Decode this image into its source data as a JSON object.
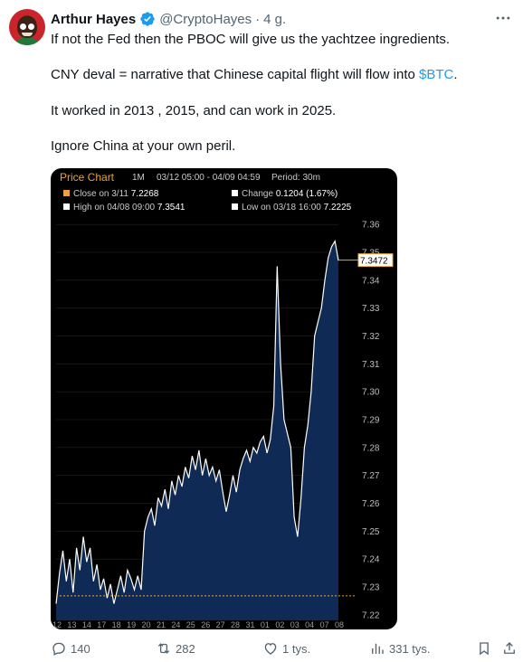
{
  "author": {
    "name": "Arthur Hayes",
    "handle": "@CryptoHayes",
    "separator": "·",
    "time": "4 g."
  },
  "tweet": {
    "line1": "If not the Fed then the PBOC will give us the yachtzee ingredients.",
    "line2_before": "CNY deval = narrative that Chinese capital flight will flow into ",
    "line2_cashtag": "$BTC",
    "line2_after": ".",
    "line3": "It worked in 2013 , 2015, and can work in 2025.",
    "line4": "Ignore China at your own peril."
  },
  "chart_data": {
    "type": "area",
    "title": "Price Chart",
    "range_label": "1M",
    "date_range": "03/12 05:00 - 04/09 04:59",
    "period": "Period: 30m",
    "close_label": "Close on 3/11",
    "close_value": "7.2268",
    "change_label": "Change",
    "change_value": "0.1204 (1.67%)",
    "high_label": "High on 04/08 09:00",
    "high_value": "7.3541",
    "low_label": "Low on 03/18 16:00",
    "low_value": "7.2225",
    "last_value": "7.3472",
    "ylim": [
      7.218,
      7.362
    ],
    "yticks": [
      "7.36",
      "7.35",
      "7.34",
      "7.33",
      "7.32",
      "7.31",
      "7.30",
      "7.29",
      "7.28",
      "7.27",
      "7.26",
      "7.25",
      "7.24",
      "7.23",
      "7.22"
    ],
    "xticks": [
      "12",
      "13",
      "14",
      "17",
      "18",
      "19",
      "20",
      "21",
      "24",
      "25",
      "26",
      "27",
      "28",
      "31",
      "01",
      "02",
      "03",
      "04",
      "07",
      "08"
    ],
    "reference_line": 7.2268,
    "colors": {
      "line": "#ffffff",
      "fill": "#0f2a55",
      "reference": "#e8a33d",
      "grid": "#2b2b2b"
    },
    "series": [
      {
        "values": [
          7.224,
          7.235,
          7.243,
          7.232,
          7.24,
          7.228,
          7.244,
          7.236,
          7.248,
          7.239,
          7.244,
          7.232,
          7.238,
          7.229,
          7.233,
          7.226,
          7.231,
          7.224,
          7.229,
          7.234,
          7.228,
          7.236,
          7.233,
          7.229,
          7.234,
          7.229,
          7.25,
          7.255,
          7.258,
          7.252,
          7.262,
          7.259,
          7.265,
          7.258,
          7.268,
          7.263,
          7.27,
          7.266,
          7.273,
          7.269,
          7.277,
          7.272,
          7.279,
          7.27,
          7.276,
          7.27,
          7.273,
          7.268,
          7.272,
          7.264,
          7.257,
          7.263,
          7.27,
          7.264,
          7.272,
          7.276,
          7.279,
          7.275,
          7.28,
          7.278,
          7.282,
          7.284,
          7.278,
          7.283,
          7.295,
          7.345,
          7.31,
          7.29,
          7.285,
          7.28,
          7.255,
          7.248,
          7.262,
          7.28,
          7.288,
          7.3,
          7.32,
          7.325,
          7.33,
          7.34,
          7.348,
          7.352,
          7.354,
          7.347
        ]
      }
    ]
  },
  "actions": {
    "replies": "140",
    "reposts": "282",
    "likes": "1 tys.",
    "views": "331 tys."
  }
}
